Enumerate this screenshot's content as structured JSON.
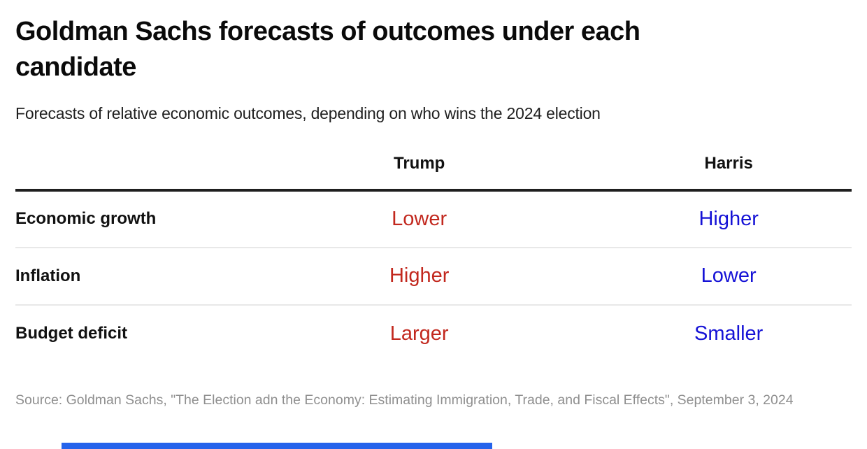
{
  "header": {
    "title": "Goldman Sachs forecasts of outcomes under each candidate",
    "subtitle": "Forecasts of relative economic outcomes, depending on who wins the 2024 election"
  },
  "table": {
    "columns": [
      "",
      "Trump",
      "Harris"
    ],
    "rows": [
      {
        "label": "Economic growth",
        "trump": "Lower",
        "harris": "Higher"
      },
      {
        "label": "Inflation",
        "trump": "Higher",
        "harris": "Lower"
      },
      {
        "label": "Budget deficit",
        "trump": "Larger",
        "harris": "Smaller"
      }
    ]
  },
  "footer": {
    "source": "Source: Goldman Sachs, \"The Election adn the Economy: Estimating Immigration, Trade, and Fiscal Effects\", September 3, 2024"
  },
  "colors": {
    "trump_text": "#c2281e",
    "harris_text": "#1512d6",
    "bottom_bar": "#2563eb",
    "header_rule": "#1f1f1f",
    "row_divider": "#e8e8e8",
    "source_text": "#8f8f8f"
  },
  "chart_data": {
    "type": "table",
    "title": "Goldman Sachs forecasts of outcomes under each candidate",
    "subtitle": "Forecasts of relative economic outcomes, depending on who wins the 2024 election",
    "columns": [
      "",
      "Trump",
      "Harris"
    ],
    "rows": [
      [
        "Economic growth",
        "Lower",
        "Higher"
      ],
      [
        "Inflation",
        "Higher",
        "Lower"
      ],
      [
        "Budget deficit",
        "Larger",
        "Smaller"
      ]
    ],
    "series_colors": {
      "Trump": "#c2281e",
      "Harris": "#1512d6"
    },
    "notes": "Source: Goldman Sachs, \"The Election adn the Economy: Estimating Immigration, Trade, and Fiscal Effects\", September 3, 2024"
  }
}
